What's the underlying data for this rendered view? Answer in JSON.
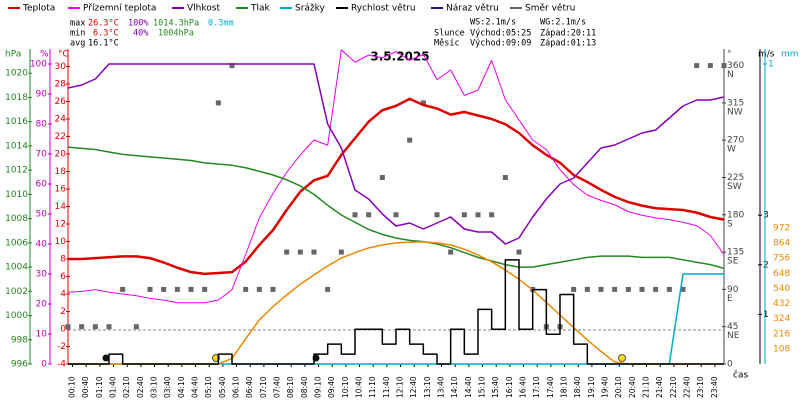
{
  "chart_data": {
    "type": "line",
    "title": "3.5.2025",
    "x_label": "čas",
    "xlim": [
      0,
      1440
    ],
    "xticks": [
      {
        "value": 10,
        "label": "00:10"
      },
      {
        "value": 40,
        "label": "00:40"
      },
      {
        "value": 70,
        "label": "01:10"
      },
      {
        "value": 100,
        "label": "01:40"
      },
      {
        "value": 130,
        "label": "02:10"
      },
      {
        "value": 160,
        "label": "02:40"
      },
      {
        "value": 190,
        "label": "03:10"
      },
      {
        "value": 220,
        "label": "03:40"
      },
      {
        "value": 250,
        "label": "04:10"
      },
      {
        "value": 280,
        "label": "04:40"
      },
      {
        "value": 310,
        "label": "05:10"
      },
      {
        "value": 340,
        "label": "05:40"
      },
      {
        "value": 370,
        "label": "06:10"
      },
      {
        "value": 400,
        "label": "06:40"
      },
      {
        "value": 430,
        "label": "07:10"
      },
      {
        "value": 460,
        "label": "07:40"
      },
      {
        "value": 490,
        "label": "08:10"
      },
      {
        "value": 520,
        "label": "08:40"
      },
      {
        "value": 550,
        "label": "09:10"
      },
      {
        "value": 580,
        "label": "09:40"
      },
      {
        "value": 610,
        "label": "10:10"
      },
      {
        "value": 640,
        "label": "10:40"
      },
      {
        "value": 670,
        "label": "11:10"
      },
      {
        "value": 700,
        "label": "11:40"
      },
      {
        "value": 730,
        "label": "12:10"
      },
      {
        "value": 760,
        "label": "12:40"
      },
      {
        "value": 790,
        "label": "13:10"
      },
      {
        "value": 820,
        "label": "13:40"
      },
      {
        "value": 850,
        "label": "14:10"
      },
      {
        "value": 880,
        "label": "14:40"
      },
      {
        "value": 910,
        "label": "15:10"
      },
      {
        "value": 940,
        "label": "15:40"
      },
      {
        "value": 970,
        "label": "16:10"
      },
      {
        "value": 1000,
        "label": "16:40"
      },
      {
        "value": 1030,
        "label": "17:10"
      },
      {
        "value": 1060,
        "label": "17:40"
      },
      {
        "value": 1090,
        "label": "18:10"
      },
      {
        "value": 1120,
        "label": "18:40"
      },
      {
        "value": 1150,
        "label": "19:10"
      },
      {
        "value": 1180,
        "label": "19:40"
      },
      {
        "value": 1210,
        "label": "20:10"
      },
      {
        "value": 1240,
        "label": "20:40"
      },
      {
        "value": 1270,
        "label": "21:10"
      },
      {
        "value": 1300,
        "label": "21:40"
      },
      {
        "value": 1330,
        "label": "22:10"
      },
      {
        "value": 1360,
        "label": "22:40"
      },
      {
        "value": 1390,
        "label": "23:10"
      },
      {
        "value": 1420,
        "label": "23:40"
      }
    ],
    "x": [
      0,
      30,
      60,
      90,
      120,
      150,
      180,
      210,
      240,
      270,
      300,
      330,
      360,
      390,
      420,
      450,
      480,
      510,
      540,
      570,
      600,
      630,
      660,
      690,
      720,
      750,
      780,
      810,
      840,
      870,
      900,
      930,
      960,
      990,
      1020,
      1050,
      1080,
      1110,
      1140,
      1170,
      1200,
      1230,
      1260,
      1290,
      1320,
      1350,
      1380,
      1410,
      1440
    ],
    "axes": {
      "y": {
        "unit": "°C",
        "color": "#dd0000",
        "ylim": [
          -4,
          32
        ],
        "yticks": [
          -4,
          -2,
          0,
          2,
          4,
          6,
          8,
          10,
          12,
          14,
          16,
          18,
          20,
          22,
          24,
          26,
          28,
          30
        ]
      },
      "y2": {
        "unit": "%",
        "color": "#cc00cc",
        "ylim": [
          0,
          105
        ],
        "yticks": [
          0,
          10,
          20,
          30,
          40,
          50,
          60,
          70,
          80,
          90,
          100
        ]
      },
      "y3": {
        "unit": "hPa",
        "color": "#228822",
        "ylim": [
          996,
          1022
        ],
        "yticks": [
          996,
          998,
          1000,
          1002,
          1004,
          1006,
          1008,
          1010,
          1012,
          1014,
          1016,
          1018,
          1020
        ]
      },
      "y4": {
        "unit": "°",
        "color": "#444444",
        "ylim": [
          0,
          380
        ],
        "yticks": [
          {
            "value": 0,
            "label": "0"
          },
          {
            "value": 45,
            "label": "45",
            "compass": "NE"
          },
          {
            "value": 90,
            "label": "90",
            "compass": "E"
          },
          {
            "value": 135,
            "label": "135",
            "compass": "SE"
          },
          {
            "value": 180,
            "label": "180",
            "compass": "S"
          },
          {
            "value": 225,
            "label": "225",
            "compass": "SW"
          },
          {
            "value": 270,
            "label": "270",
            "compass": "W"
          },
          {
            "value": 315,
            "label": "315",
            "compass": "NW"
          },
          {
            "value": 360,
            "label": "360",
            "compass": "N"
          }
        ]
      },
      "y5": {
        "unit": "m/s",
        "color": "#000000",
        "ylim": [
          0,
          6.35
        ],
        "yticks": [
          1,
          2,
          3
        ]
      },
      "y6": {
        "unit": "mm",
        "color": "#00aacc",
        "ylim": [
          0,
          1.05
        ],
        "yticks": [
          1
        ]
      },
      "y7": {
        "color": "#ee8800",
        "ylim": [
          0,
          2250
        ],
        "yticks": [
          108,
          216,
          324,
          432,
          540,
          648,
          756,
          864,
          972
        ]
      }
    },
    "series": [
      {
        "name": "Teplota",
        "color": "#dd0000",
        "axis": "y",
        "style": "line",
        "width": 2.5,
        "values": [
          8.0,
          8.0,
          8.1,
          8.2,
          8.3,
          8.3,
          8.1,
          7.6,
          7.0,
          6.5,
          6.3,
          6.4,
          6.5,
          7.7,
          9.6,
          11.3,
          13.6,
          15.7,
          17.0,
          17.5,
          19.9,
          21.8,
          23.7,
          25.0,
          25.5,
          26.3,
          25.6,
          25.2,
          24.5,
          24.8,
          24.4,
          24.0,
          23.4,
          22.4,
          21.0,
          19.9,
          19.0,
          17.6,
          16.8,
          15.9,
          15.1,
          14.5,
          14.1,
          13.8,
          13.7,
          13.6,
          13.3,
          12.8,
          12.5
        ]
      },
      {
        "name": "Přízemní teplota",
        "color": "#ee00ee",
        "axis": "y",
        "style": "line",
        "width": 1,
        "values": [
          4.2,
          4.3,
          4.5,
          4.2,
          4.0,
          3.8,
          3.5,
          3.3,
          3.0,
          3.0,
          3.0,
          3.3,
          4.5,
          8.5,
          12.7,
          15.5,
          17.9,
          19.9,
          21.6,
          21.0,
          31.9,
          30.5,
          31.3,
          31.0,
          31.7,
          30.7,
          31.4,
          28.5,
          29.6,
          26.7,
          27.3,
          30.7,
          26.2,
          23.9,
          21.6,
          20.5,
          18.2,
          16.5,
          15.3,
          14.7,
          14.2,
          13.4,
          13.0,
          12.7,
          12.5,
          12.2,
          11.8,
          10.7,
          8.5
        ]
      },
      {
        "name": "Vlhkost",
        "color": "#8800bb",
        "axis": "y2",
        "style": "line",
        "width": 1.5,
        "values": [
          92,
          93,
          95,
          100,
          100,
          100,
          100,
          100,
          100,
          100,
          100,
          100,
          100,
          100,
          100,
          100,
          100,
          100,
          100,
          80,
          72,
          58,
          55,
          50,
          46,
          47,
          45,
          47,
          49,
          45,
          44,
          44,
          40,
          42,
          49,
          55,
          60,
          62,
          67,
          72,
          73,
          75,
          77,
          78,
          82,
          86,
          88,
          88,
          89
        ]
      },
      {
        "name": "Tlak",
        "color": "#228822",
        "axis": "y3",
        "style": "line",
        "width": 1.5,
        "values": [
          1013.9,
          1013.8,
          1013.7,
          1013.5,
          1013.3,
          1013.2,
          1013.1,
          1013.0,
          1012.9,
          1012.8,
          1012.6,
          1012.5,
          1012.4,
          1012.2,
          1011.9,
          1011.6,
          1011.2,
          1010.7,
          1010.0,
          1009.1,
          1008.3,
          1007.7,
          1007.1,
          1006.7,
          1006.4,
          1006.2,
          1006.1,
          1005.9,
          1005.6,
          1005.2,
          1004.8,
          1004.5,
          1004.2,
          1004.0,
          1004.0,
          1004.2,
          1004.4,
          1004.6,
          1004.8,
          1004.9,
          1004.9,
          1004.9,
          1004.8,
          1004.8,
          1004.8,
          1004.6,
          1004.4,
          1004.2,
          1003.9
        ]
      },
      {
        "name": "Srážky",
        "color": "#00aacc",
        "axis": "y6",
        "style": "line",
        "width": 1.5,
        "values": [
          0,
          0,
          0,
          0,
          0,
          0,
          0,
          0,
          0,
          0,
          0,
          0,
          0,
          0,
          0,
          0,
          0,
          0,
          0,
          0,
          0,
          0,
          0,
          0,
          0,
          0,
          0,
          0,
          0,
          0,
          0,
          0,
          0,
          0,
          0,
          0,
          0,
          0,
          0,
          0,
          0,
          0,
          0,
          0,
          0,
          0.3,
          0.3,
          0.3,
          0.3
        ]
      },
      {
        "name": "Rychlost větru",
        "color": "#000000",
        "axis": "y5",
        "style": "step",
        "width": 1.5,
        "values": [
          0,
          0,
          0,
          0.2,
          0,
          0,
          0,
          0,
          0,
          0,
          0,
          0.2,
          0,
          0,
          0,
          0,
          0,
          0,
          0.2,
          0.4,
          0.2,
          0.7,
          0.7,
          0.4,
          0.7,
          0.4,
          0.2,
          0,
          0.7,
          0.2,
          1.1,
          0.7,
          2.1,
          0.7,
          1.5,
          0.6,
          1.4,
          0.4,
          0,
          0,
          0,
          0,
          0,
          0,
          0,
          0,
          0,
          0,
          0
        ]
      },
      {
        "name": "Náraz větru",
        "color": "#1a1a7a",
        "axis": "y5",
        "style": "step",
        "width": 1.5
      },
      {
        "name": "Směr větru",
        "color": "#666666",
        "axis": "y4",
        "style": "points",
        "values": [
          45,
          45,
          45,
          45,
          90,
          45,
          90,
          90,
          90,
          90,
          90,
          315,
          360,
          90,
          90,
          90,
          135,
          135,
          135,
          90,
          135,
          180,
          180,
          225,
          180,
          270,
          315,
          180,
          135,
          180,
          180,
          180,
          225,
          135,
          90,
          45,
          45,
          90,
          90,
          90,
          90,
          90,
          90,
          90,
          90,
          90,
          360,
          360,
          360
        ]
      },
      {
        "color": "#ee8800",
        "axis": "y7",
        "style": "line",
        "width": 1.5,
        "values": [
          0,
          0,
          0,
          0,
          0,
          0,
          0,
          0,
          0,
          0,
          0,
          0,
          40,
          180,
          315,
          410,
          493,
          570,
          636,
          700,
          757,
          795,
          829,
          850,
          865,
          870,
          872,
          865,
          850,
          820,
          779,
          730,
          672,
          605,
          529,
          440,
          350,
          260,
          172,
          90,
          14,
          0,
          0,
          0,
          0,
          0,
          0,
          0,
          0
        ]
      }
    ],
    "summary": {
      "max": {
        "label": "max",
        "temp": "26.3°C",
        "humidity": "100%",
        "pressure": "1014.3hPa",
        "rain": "0.3mm"
      },
      "min": {
        "label": "min",
        "temp": "6.3°C",
        "humidity": "40%",
        "pressure": "1004hPa"
      },
      "avg": {
        "label": "avg",
        "temp": "16.1°C"
      },
      "ws": "WS:2.1m/s",
      "wg": "WG:2.1m/s",
      "sun": {
        "label": "Slunce",
        "rise": "Východ:05:25",
        "set": "Západ:20:11"
      },
      "moon": {
        "label": "Měsíc",
        "rise": "Východ:09:09",
        "set": "Západ:01:13"
      }
    }
  }
}
